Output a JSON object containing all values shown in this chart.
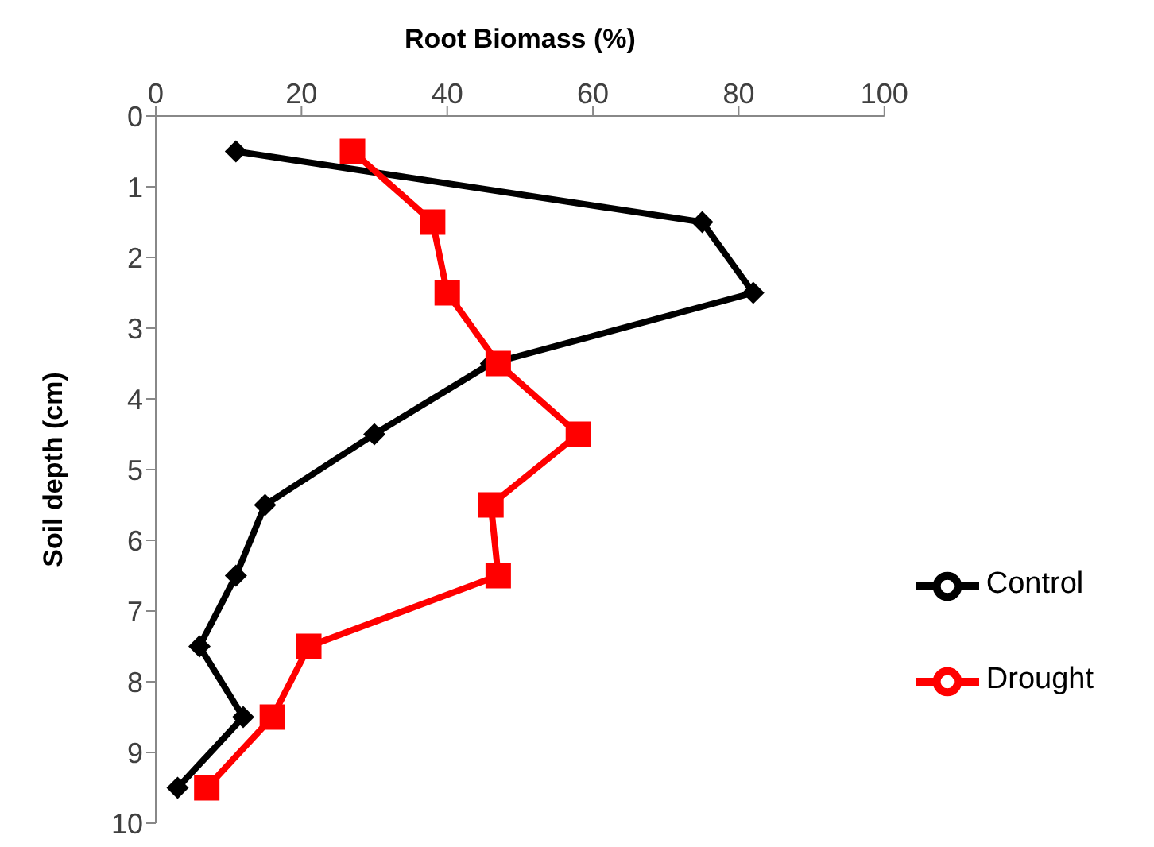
{
  "chart_data": {
    "type": "line",
    "xlabel": "Root Biomass (%)",
    "ylabel": "Soil depth (cm)",
    "xlim": [
      0,
      100
    ],
    "xticks": [
      0,
      20,
      40,
      60,
      80,
      100
    ],
    "ylim": [
      10,
      0
    ],
    "yticks": [
      0,
      1,
      2,
      3,
      4,
      5,
      6,
      7,
      8,
      9,
      10
    ],
    "grid": false,
    "legend": "right",
    "line_style": "solid",
    "series": [
      {
        "name": "Control",
        "color": "#000000",
        "marker": "diamond",
        "x": [
          11,
          75,
          82,
          46,
          30,
          15,
          11,
          6,
          12,
          3
        ],
        "values": [
          0.5,
          1.5,
          2.5,
          3.5,
          4.5,
          5.5,
          6.5,
          7.5,
          8.5,
          9.5
        ]
      },
      {
        "name": "Drought",
        "color": "#ff0000",
        "marker": "square",
        "x": [
          27,
          38,
          40,
          47,
          58,
          46,
          47,
          21,
          16,
          7
        ],
        "values": [
          0.5,
          1.5,
          2.5,
          3.5,
          4.5,
          5.5,
          6.5,
          7.5,
          8.5,
          9.5
        ]
      }
    ]
  }
}
